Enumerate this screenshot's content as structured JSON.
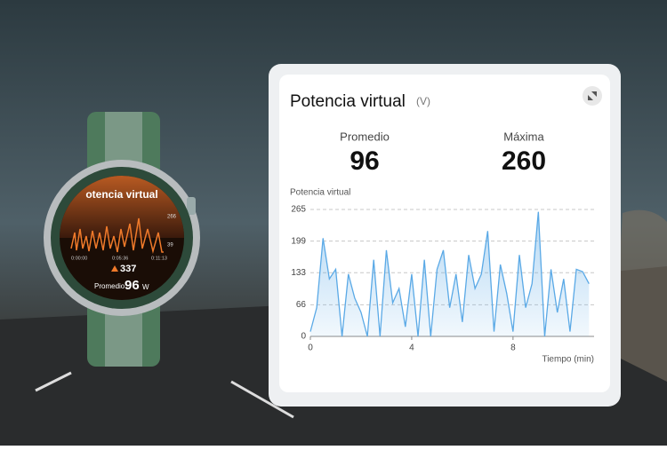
{
  "chart_data": {
    "type": "area",
    "title": "Potencia virtual",
    "unit": "(V)",
    "stats": [
      {
        "label": "Promedio",
        "value": 96
      },
      {
        "label": "Máxima",
        "value": 260
      }
    ],
    "ylabel": "Potencia virtual",
    "xlabel": "Tiempo (min)",
    "x": [
      0,
      0.25,
      0.5,
      0.75,
      1,
      1.25,
      1.5,
      1.75,
      2,
      2.25,
      2.5,
      2.75,
      3,
      3.25,
      3.5,
      3.75,
      4,
      4.25,
      4.5,
      4.75,
      5,
      5.25,
      5.5,
      5.75,
      6,
      6.25,
      6.5,
      6.75,
      7,
      7.25,
      7.5,
      7.75,
      8,
      8.25,
      8.5,
      8.75,
      9,
      9.25,
      9.5,
      9.75,
      10,
      10.25,
      10.5,
      10.75,
      11
    ],
    "values": [
      10,
      60,
      205,
      120,
      140,
      0,
      130,
      80,
      50,
      0,
      160,
      0,
      180,
      70,
      100,
      20,
      130,
      0,
      160,
      0,
      140,
      180,
      60,
      130,
      30,
      170,
      100,
      130,
      220,
      10,
      150,
      90,
      10,
      170,
      60,
      110,
      260,
      0,
      140,
      50,
      120,
      10,
      140,
      135,
      110
    ],
    "color": "#5aa9e6",
    "xlim": [
      0,
      11.2
    ],
    "xticks": [
      0,
      4,
      8
    ],
    "ylim": [
      0,
      265
    ],
    "yticks": [
      0,
      66,
      133,
      199,
      265
    ],
    "grid": true
  },
  "watch": {
    "title": "otencia virtual",
    "max": 266,
    "min": 39,
    "times": [
      "0:00:00",
      "0:05:36",
      "0:11:13"
    ],
    "peak": 337,
    "avg_label": "Promedio",
    "avg": 96,
    "avg_unit": "W"
  }
}
